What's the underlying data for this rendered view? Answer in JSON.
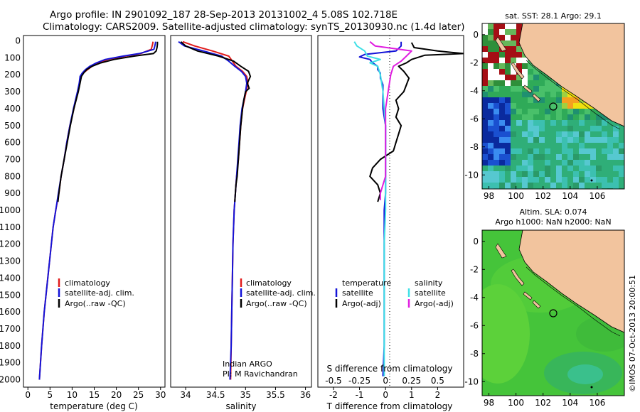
{
  "title_line1": "Argo profile: IN 2901092_187 28-Sep-2013 20131002_4 5.08S 102.718E",
  "title_line2": "Climatology: CARS2009. Satellite-adjusted climatology: synTS_20130930.nc (1.4d later)",
  "colors": {
    "climatology": "#e11b1b",
    "satellite": "#1414d8",
    "argo": "#000000",
    "satellite_salinity": "#3fe0e6",
    "argo_salinity": "#e01ee0",
    "land": "#f2c49e",
    "ocean_sla": "#45c43a"
  },
  "chart_data": [
    {
      "id": "temperature",
      "type": "line",
      "xlabel": "temperature (deg C)",
      "ylabel": "",
      "xlim": [
        -1,
        31
      ],
      "ylim": [
        2100,
        0
      ],
      "xticks": [
        "0",
        "5",
        "10",
        "15",
        "20",
        "25",
        "30"
      ],
      "yticks": [
        "0",
        "100",
        "200",
        "300",
        "400",
        "500",
        "600",
        "700",
        "800",
        "900",
        "1000",
        "1100",
        "1200",
        "1300",
        "1400",
        "1500",
        "1600",
        "1700",
        "1800",
        "1900",
        "2000"
      ],
      "legend": [
        "climatology",
        "satellite-adj. clim.",
        "Argo(..raw -QC)"
      ],
      "series": [
        {
          "name": "climatology",
          "color": "red",
          "depth": [
            5,
            20,
            50,
            75,
            90,
            110,
            130,
            150,
            170,
            190,
            210,
            250,
            300,
            400,
            500,
            600,
            700,
            800,
            900,
            1000,
            1100,
            1200,
            1400,
            1600,
            1800,
            2000
          ],
          "values": [
            28.3,
            28.2,
            27.9,
            25.5,
            22.0,
            18.0,
            16.0,
            14.5,
            13.5,
            12.5,
            12.0,
            11.7,
            11.3,
            10.4,
            9.5,
            8.8,
            8.2,
            7.5,
            7.0,
            6.3,
            5.7,
            5.3,
            4.5,
            3.7,
            3.1,
            2.6
          ]
        },
        {
          "name": "satellite-adj. clim.",
          "color": "blue",
          "depth": [
            5,
            20,
            50,
            75,
            90,
            110,
            130,
            150,
            170,
            190,
            210,
            250,
            300,
            400,
            500,
            600,
            700,
            800,
            900,
            1000,
            1100,
            1200,
            1400,
            1600,
            1800,
            2000
          ],
          "values": [
            28.9,
            28.8,
            28.5,
            25.2,
            21.5,
            17.5,
            15.5,
            14.0,
            13.0,
            12.3,
            11.8,
            11.6,
            11.2,
            10.3,
            9.5,
            8.8,
            8.2,
            7.5,
            6.9,
            6.3,
            5.7,
            5.3,
            4.5,
            3.7,
            3.1,
            2.6
          ]
        },
        {
          "name": "Argo(..raw -QC)",
          "color": "black",
          "depth": [
            5,
            20,
            40,
            60,
            75,
            90,
            110,
            130,
            150,
            170,
            190,
            210,
            250,
            300,
            400,
            500,
            600,
            700,
            800,
            900,
            950
          ],
          "values": [
            29.3,
            29.3,
            29.2,
            29.0,
            28.4,
            24.0,
            19.5,
            16.5,
            14.5,
            13.3,
            12.6,
            12.1,
            11.8,
            11.4,
            10.4,
            9.6,
            8.9,
            8.2,
            7.5,
            7.0,
            6.8
          ]
        }
      ]
    },
    {
      "id": "salinity",
      "type": "line",
      "xlabel": "salinity",
      "ylabel": "",
      "xlim": [
        33.75,
        36.1
      ],
      "ylim": [
        2100,
        0
      ],
      "xticks": [
        "34",
        "34.5",
        "35",
        "35.5",
        "36"
      ],
      "legend": [
        "climatology",
        "satellite-adj. clim.",
        "Argo(..raw -QC)"
      ],
      "annotation": [
        "Indian ARGO",
        "PI: M Ravichandran"
      ],
      "series": [
        {
          "name": "climatology",
          "color": "red",
          "depth": [
            5,
            30,
            60,
            90,
            120,
            150,
            180,
            210,
            250,
            300,
            350,
            400,
            500,
            600,
            700,
            800,
            900,
            1000,
            1200,
            1400,
            1600,
            1800,
            2000
          ],
          "values": [
            33.95,
            34.15,
            34.45,
            34.72,
            34.78,
            34.84,
            34.95,
            35.02,
            35.04,
            35.01,
            34.98,
            34.95,
            34.92,
            34.9,
            34.88,
            34.85,
            34.83,
            34.81,
            34.79,
            34.78,
            34.77,
            34.76,
            34.75
          ]
        },
        {
          "name": "satellite-adj. clim.",
          "color": "blue",
          "depth": [
            5,
            30,
            60,
            90,
            120,
            150,
            180,
            210,
            250,
            300,
            350,
            400,
            500,
            600,
            700,
            800,
            900,
            1000,
            1200,
            1400,
            1600,
            1800,
            2000
          ],
          "values": [
            33.88,
            33.98,
            34.3,
            34.6,
            34.72,
            34.82,
            34.93,
            35.0,
            35.02,
            35.0,
            34.97,
            34.94,
            34.91,
            34.89,
            34.87,
            34.85,
            34.83,
            34.81,
            34.79,
            34.78,
            34.77,
            34.76,
            34.74
          ]
        },
        {
          "name": "Argo(..raw -QC)",
          "color": "black",
          "depth": [
            5,
            30,
            60,
            90,
            120,
            150,
            180,
            210,
            250,
            280,
            300,
            350,
            400,
            500,
            600,
            700,
            800,
            850,
            900,
            950
          ],
          "values": [
            33.92,
            34.0,
            34.2,
            34.55,
            34.8,
            34.92,
            35.05,
            35.08,
            35.03,
            35.06,
            35.0,
            34.97,
            34.95,
            34.92,
            34.9,
            34.88,
            34.86,
            34.84,
            34.83,
            34.82
          ]
        }
      ]
    },
    {
      "id": "difference",
      "type": "line",
      "xlabel": "T difference from climatology",
      "xlabel_top": "S difference from climatology",
      "xlim": [
        -2.6,
        3.0
      ],
      "ylim": [
        2100,
        0
      ],
      "xticks": [
        "-2",
        "-1",
        "0",
        "1",
        "2"
      ],
      "xticks_top": [
        "-0.5",
        "-0.25",
        "0",
        "0.25",
        "0.5"
      ],
      "legend_headers": [
        "temperature",
        "salinity"
      ],
      "legend_left": [
        "satellite",
        "Argo(-adj)"
      ],
      "legend_right": [
        "satellite",
        "Argo(-adj)"
      ],
      "series": [
        {
          "name": "temperature satellite",
          "color": "blue",
          "depth": [
            5,
            30,
            60,
            80,
            95,
            110,
            130,
            150,
            170,
            190,
            220,
            260,
            300,
            400,
            500,
            600,
            700,
            800,
            900,
            1000,
            1200,
            1400,
            1600,
            1800,
            1980
          ],
          "values": [
            0.6,
            0.6,
            0.4,
            -0.8,
            -1.0,
            -0.6,
            -0.5,
            -0.3,
            -0.3,
            -0.2,
            -0.2,
            -0.1,
            -0.1,
            -0.1,
            0.0,
            0.0,
            0.0,
            0.0,
            0.0,
            -0.05,
            -0.05,
            -0.05,
            -0.05,
            -0.05,
            -0.1
          ]
        },
        {
          "name": "temperature Argo(-adj)",
          "color": "black",
          "depth": [
            10,
            40,
            60,
            75,
            85,
            95,
            110,
            130,
            150,
            180,
            220,
            260,
            300,
            350,
            400,
            450,
            500,
            550,
            600,
            650,
            700,
            750,
            800,
            850,
            900,
            950
          ],
          "values": [
            1.0,
            1.1,
            2.0,
            3.0,
            1.5,
            1.3,
            1.0,
            0.8,
            0.5,
            0.7,
            0.9,
            0.8,
            0.7,
            0.4,
            0.5,
            0.4,
            0.6,
            0.5,
            0.4,
            0.3,
            -0.2,
            -0.5,
            -0.6,
            -0.3,
            -0.2,
            -0.3
          ]
        },
        {
          "name": "salinity satellite",
          "color": "cyan",
          "depth": [
            5,
            30,
            60,
            90,
            110,
            130,
            150,
            200,
            300,
            400,
            500,
            600,
            700,
            800,
            1000,
            1200,
            1400,
            1600,
            1800,
            1980
          ],
          "values": [
            -1.2,
            -1.1,
            -0.8,
            -0.7,
            -0.2,
            -0.6,
            -0.3,
            -0.2,
            -0.1,
            -0.05,
            0.0,
            0.0,
            0.0,
            0.0,
            0.0,
            -0.05,
            -0.05,
            -0.05,
            -0.05,
            -0.05
          ]
        },
        {
          "name": "salinity Argo(-adj)",
          "color": "magenta",
          "depth": [
            5,
            30,
            60,
            90,
            120,
            150,
            200,
            300,
            400,
            500,
            600,
            700,
            800,
            850,
            900,
            940
          ],
          "values": [
            -0.6,
            -0.4,
            1.0,
            0.8,
            0.6,
            0.3,
            0.2,
            0.1,
            0.0,
            0.0,
            0.0,
            0.0,
            0.0,
            -0.1,
            -0.2,
            -0.2
          ]
        }
      ]
    },
    {
      "id": "sst_map",
      "type": "heatmap",
      "title": "sat. SST: 28.1  Argo: 29.1",
      "xticks": [
        "98",
        "100",
        "102",
        "104",
        "106"
      ],
      "yticks": [
        "0",
        "-2",
        "-4",
        "-6",
        "-8",
        "-10"
      ],
      "xlim": [
        97.5,
        108
      ],
      "ylim": [
        -11,
        0.8
      ],
      "profile_location": {
        "lon": 102.718,
        "lat": -5.08
      }
    },
    {
      "id": "sla_map",
      "type": "heatmap",
      "title_line1": "Altim. SLA: 0.074",
      "title_line2": "Argo h1000: NaN h2000: NaN",
      "xticks": [
        "98",
        "100",
        "102",
        "104",
        "106"
      ],
      "yticks": [
        "0",
        "-2",
        "-4",
        "-6",
        "-8",
        "-10"
      ],
      "xlim": [
        97.5,
        108
      ],
      "ylim": [
        -11,
        0.8
      ],
      "profile_location": {
        "lon": 102.718,
        "lat": -5.08
      }
    }
  ],
  "watermark": "©IMOS 07-Oct-2013 20:00:51"
}
